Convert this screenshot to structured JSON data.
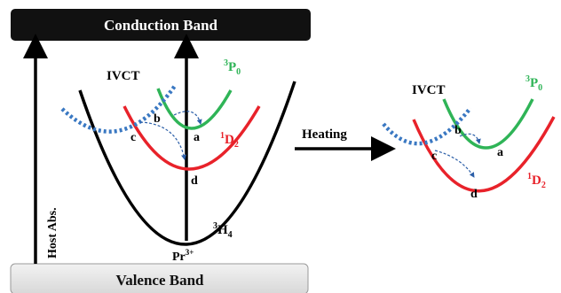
{
  "bands": {
    "conduction": "Conduction Band",
    "valence": "Valence Band"
  },
  "labels": {
    "host_abs": "Host Abs.",
    "ivct": "IVCT",
    "heating": "Heating",
    "ion_base": "Pr",
    "ion_charge": "3+",
    "state_3p0": {
      "sup": "3",
      "base": "P",
      "sub": "0"
    },
    "state_1d2": {
      "sup": "1",
      "base": "D",
      "sub": "2"
    },
    "state_3h4": {
      "sup": "3",
      "base": "H",
      "sub": "4"
    },
    "point_a": "a",
    "point_b": "b",
    "point_c": "c",
    "point_d": "d"
  },
  "colors": {
    "conduction_band_fill": "#111111",
    "conduction_band_text": "#ffffff",
    "valence_band_fill": "#e6e6e6",
    "ground_state_curve": "#000000",
    "state_3p0": "#2fb457",
    "state_1d2": "#e8222a",
    "ivct_curve": "#3a78c2",
    "relaxation_arrow": "#2c5fa8",
    "arrows": "#000000"
  }
}
